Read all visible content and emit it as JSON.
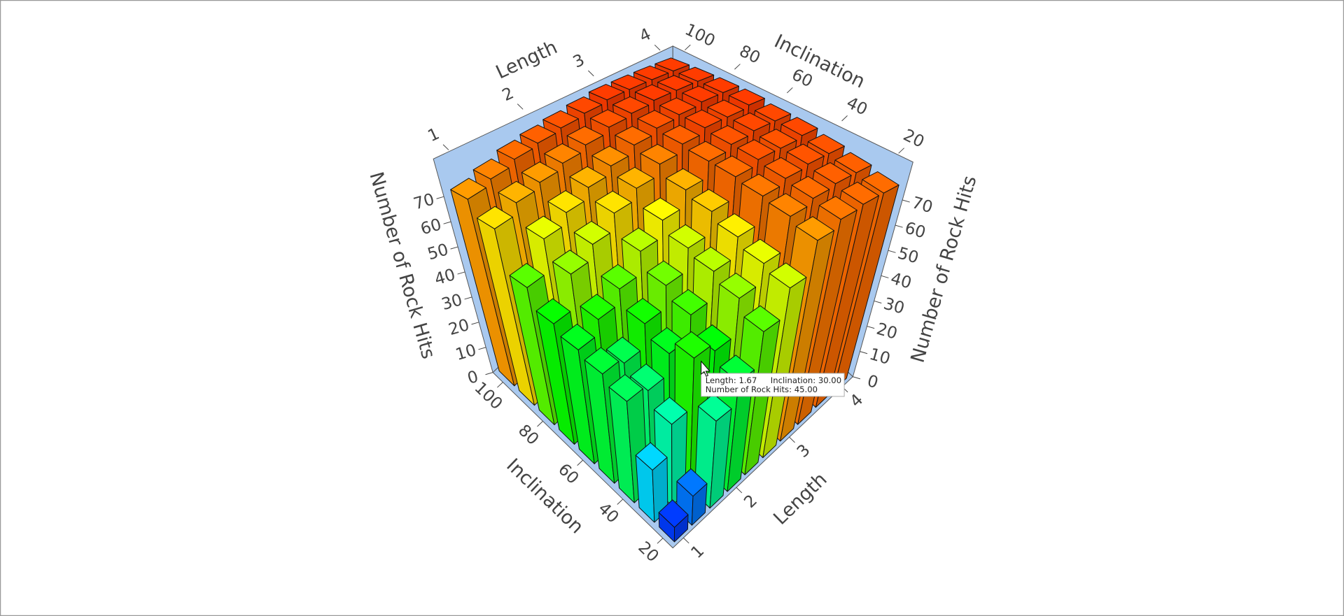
{
  "chart_data": {
    "type": "bar3d",
    "xlabel": "Length",
    "ylabel": "Inclination",
    "zlabel": "Number of Rock Hits",
    "x": [
      1,
      1.33,
      1.67,
      2,
      2.33,
      2.67,
      3,
      3.33,
      3.67,
      4
    ],
    "y": [
      20,
      30,
      40,
      50,
      60,
      70,
      80,
      90,
      100
    ],
    "values": [
      [
        5,
        10,
        30,
        38,
        50,
        60,
        72,
        75,
        76,
        76
      ],
      [
        18,
        28,
        45,
        42,
        55,
        62,
        74,
        76,
        77,
        77
      ],
      [
        35,
        33,
        40,
        48,
        58,
        65,
        75,
        77,
        78,
        78
      ],
      [
        38,
        36,
        44,
        52,
        60,
        68,
        76,
        78,
        78,
        79
      ],
      [
        40,
        45,
        50,
        58,
        64,
        70,
        76,
        78,
        79,
        79
      ],
      [
        43,
        55,
        60,
        66,
        70,
        74,
        77,
        79,
        79,
        80
      ],
      [
        50,
        62,
        66,
        70,
        73,
        76,
        78,
        79,
        80,
        80
      ],
      [
        66,
        70,
        72,
        74,
        76,
        78,
        79,
        80,
        80,
        80
      ],
      [
        72,
        74,
        76,
        77,
        78,
        79,
        80,
        80,
        80,
        80
      ]
    ],
    "xlim": [
      0.8,
      4.2
    ],
    "ylim": [
      15,
      105
    ],
    "zlim": [
      0,
      85
    ],
    "xticks": [
      1,
      2,
      3,
      4
    ],
    "yticks": [
      20,
      40,
      60,
      80,
      100
    ],
    "zticks": [
      0,
      10,
      20,
      30,
      40,
      50,
      60,
      70
    ],
    "colormap": [
      "#0000ff",
      "#00ffff",
      "#00ff00",
      "#ffff00",
      "#ff0000"
    ],
    "wall_color": "#a9c9ef",
    "grid": false,
    "tooltip": {
      "length": "Length: 1.67",
      "inclination": "Inclination: 30.00",
      "value": "Number of Rock Hits: 45.00"
    }
  }
}
